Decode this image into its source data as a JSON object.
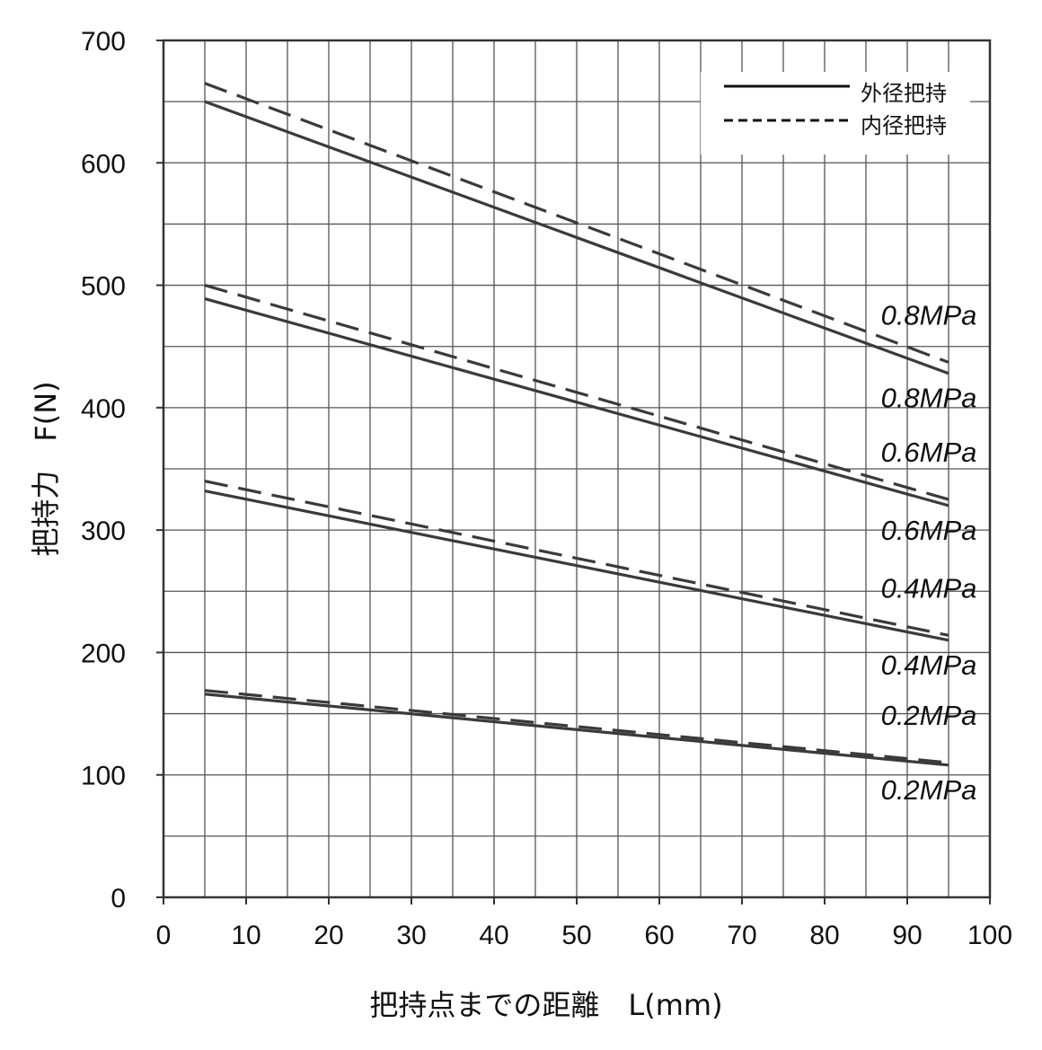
{
  "chart_data": {
    "type": "line",
    "xlabel": "把持点までの距離　L(mm)",
    "ylabel": "把持力　F(N)",
    "xlim": [
      0,
      100
    ],
    "ylim": [
      0,
      700
    ],
    "x_ticks": [
      "0",
      "10",
      "20",
      "30",
      "40",
      "50",
      "60",
      "70",
      "80",
      "90",
      "100"
    ],
    "y_ticks": [
      "0",
      "100",
      "200",
      "300",
      "400",
      "500",
      "600",
      "700"
    ],
    "grid": true,
    "legend_position": "top-right",
    "legend": [
      {
        "label": "外径把持",
        "style": "solid"
      },
      {
        "label": "内径把持",
        "style": "dashed"
      }
    ],
    "series": [
      {
        "style": "solid",
        "label": "0.8MPa",
        "x": [
          5,
          95
        ],
        "y": [
          650,
          428
        ]
      },
      {
        "style": "dashed",
        "label": "0.8MPa",
        "x": [
          5,
          95
        ],
        "y": [
          665,
          437
        ]
      },
      {
        "style": "solid",
        "label": "0.6MPa",
        "x": [
          5,
          95
        ],
        "y": [
          489,
          320
        ]
      },
      {
        "style": "dashed",
        "label": "0.6MPa",
        "x": [
          5,
          95
        ],
        "y": [
          500,
          325
        ]
      },
      {
        "style": "solid",
        "label": "0.4MPa",
        "x": [
          5,
          95
        ],
        "y": [
          332,
          210
        ]
      },
      {
        "style": "dashed",
        "label": "0.4MPa",
        "x": [
          5,
          95
        ],
        "y": [
          340,
          214
        ]
      },
      {
        "style": "solid",
        "label": "0.2MPa",
        "x": [
          5,
          95
        ],
        "y": [
          166,
          108
        ]
      },
      {
        "style": "dashed",
        "label": "0.2MPa",
        "x": [
          5,
          95
        ],
        "y": [
          169,
          110
        ]
      }
    ],
    "colors": {
      "line": "#3a3a3a",
      "grid": "#555555",
      "axis": "#333333",
      "text": "#111111"
    }
  }
}
